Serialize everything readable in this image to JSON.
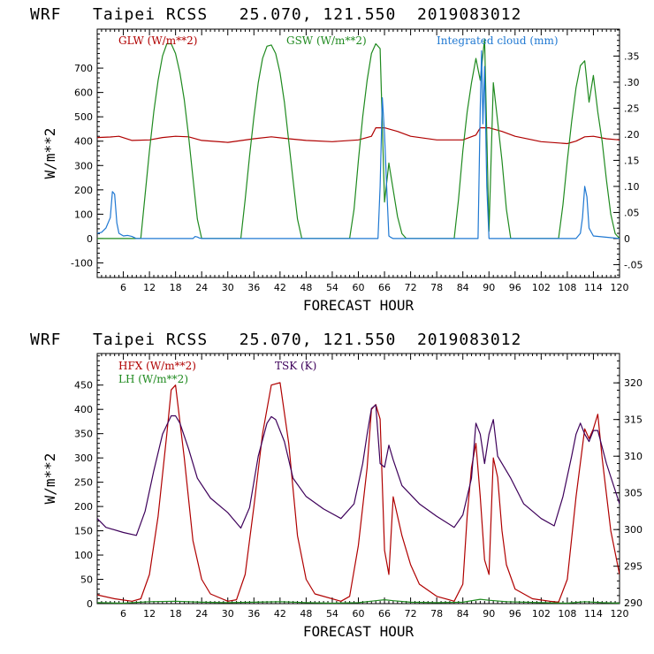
{
  "colors": {
    "red": "#b00000",
    "green": "#1f8a1f",
    "blue": "#1f78d2",
    "purple": "#3d005a",
    "axis": "#000000"
  },
  "chart_data": [
    {
      "type": "line",
      "title": "WRF   Taipei RCSS   25.070, 121.550  2019083012",
      "xlabel": "FORECAST HOUR",
      "ylabel": "W/m**2",
      "xlim": [
        0,
        120
      ],
      "ylim": [
        -160,
        860
      ],
      "y2lim": [
        -0.0747,
        0.4016
      ],
      "xticks": [
        "6",
        "12",
        "18",
        "24",
        "30",
        "36",
        "42",
        "48",
        "54",
        "60",
        "66",
        "72",
        "78",
        "84",
        "90",
        "96",
        "102",
        "108",
        "114",
        "120"
      ],
      "yticks": [
        "-100",
        "0",
        "100",
        "200",
        "300",
        "400",
        "500",
        "600",
        "700"
      ],
      "y2ticks": [
        "-.05",
        "0",
        ".05",
        ".10",
        ".15",
        ".20",
        ".25",
        ".30",
        ".35"
      ],
      "series": [
        {
          "name": "GLW (W/m**2)",
          "color": "red",
          "axis": "left",
          "x": [
            0,
            3,
            5,
            8,
            12,
            15,
            18,
            21,
            24,
            30,
            36,
            40,
            44,
            48,
            54,
            60,
            63,
            64,
            66,
            69,
            72,
            78,
            84,
            87,
            88,
            90,
            93,
            96,
            102,
            108,
            110,
            112,
            114,
            117,
            120
          ],
          "y": [
            415,
            417,
            420,
            403,
            405,
            415,
            420,
            418,
            403,
            395,
            410,
            418,
            410,
            403,
            398,
            405,
            420,
            455,
            455,
            440,
            420,
            405,
            405,
            425,
            455,
            455,
            440,
            420,
            398,
            390,
            400,
            418,
            420,
            410,
            405
          ]
        },
        {
          "name": "GSW (W/m**2)",
          "color": "green",
          "axis": "left",
          "x": [
            0,
            10,
            11,
            12,
            13,
            14,
            15,
            16,
            17,
            18,
            19,
            20,
            21,
            22,
            23,
            24,
            33,
            34,
            35,
            36,
            37,
            38,
            39,
            40,
            41,
            42,
            43,
            44,
            45,
            46,
            47,
            58,
            59,
            60,
            61,
            62,
            63,
            64,
            65,
            66,
            67,
            68,
            69,
            70,
            71,
            82,
            83,
            84,
            85,
            86,
            87,
            88,
            89,
            90,
            91,
            92,
            93,
            94,
            95,
            106,
            107,
            108,
            109,
            110,
            111,
            112,
            113,
            114,
            115,
            116,
            117,
            118,
            119,
            120
          ],
          "y": [
            0,
            0,
            180,
            360,
            520,
            650,
            750,
            800,
            800,
            760,
            680,
            570,
            420,
            250,
            80,
            0,
            0,
            160,
            340,
            500,
            640,
            740,
            790,
            795,
            760,
            680,
            560,
            400,
            240,
            80,
            0,
            0,
            120,
            320,
            500,
            650,
            760,
            800,
            780,
            150,
            310,
            200,
            90,
            20,
            0,
            0,
            160,
            360,
            520,
            640,
            740,
            650,
            820,
            30,
            640,
            480,
            320,
            120,
            0,
            0,
            140,
            320,
            480,
            620,
            710,
            730,
            560,
            670,
            520,
            400,
            240,
            100,
            20,
            0
          ]
        },
        {
          "name": "Integrated cloud (mm)",
          "color": "blue",
          "axis": "right",
          "x": [
            0,
            1,
            2,
            3,
            3.5,
            4,
            4.5,
            5,
            6,
            7,
            8,
            9,
            10,
            22,
            22.5,
            23,
            23.5,
            24,
            64.5,
            65,
            65.5,
            66,
            66.5,
            67,
            67.5,
            68,
            87.5,
            88,
            88.3,
            88.6,
            89,
            89.5,
            90,
            110,
            111,
            111.5,
            112,
            112.5,
            113,
            114,
            120
          ],
          "y": [
            0.01,
            0.012,
            0.02,
            0.04,
            0.09,
            0.085,
            0.03,
            0.01,
            0.005,
            0.006,
            0.004,
            0,
            0,
            0,
            0.004,
            0.003,
            0.001,
            0,
            0,
            0.1,
            0.27,
            0.2,
            0.1,
            0.005,
            0.002,
            0,
            0,
            0.25,
            0.36,
            0.22,
            0.33,
            0.1,
            0,
            0,
            0.01,
            0.04,
            0.1,
            0.08,
            0.02,
            0.005,
            0
          ]
        }
      ]
    },
    {
      "type": "line",
      "title": "WRF   Taipei RCSS   25.070, 121.550  2019083012",
      "xlabel": "FORECAST HOUR",
      "ylabel": "W/m**2",
      "xlim": [
        0,
        120
      ],
      "ylim": [
        0,
        515
      ],
      "y2lim": [
        289.9,
        324.0
      ],
      "xticks": [
        "6",
        "12",
        "18",
        "24",
        "30",
        "36",
        "42",
        "48",
        "54",
        "60",
        "66",
        "72",
        "78",
        "84",
        "90",
        "96",
        "102",
        "108",
        "114",
        "120"
      ],
      "yticks": [
        "0",
        "50",
        "100",
        "150",
        "200",
        "250",
        "300",
        "350",
        "400",
        "450"
      ],
      "y2ticks": [
        "290",
        "295",
        "300",
        "305",
        "310",
        "315",
        "320"
      ],
      "series": [
        {
          "name": "HFX (W/m**2)",
          "color": "red",
          "axis": "left",
          "x": [
            0,
            4,
            8,
            10,
            12,
            14,
            16,
            17,
            18,
            20,
            22,
            24,
            26,
            30,
            32,
            34,
            36,
            38,
            40,
            42,
            44,
            46,
            48,
            50,
            56,
            58,
            60,
            62,
            63,
            64,
            65,
            66,
            67,
            68,
            70,
            72,
            74,
            78,
            82,
            84,
            85,
            86,
            87,
            88,
            89,
            90,
            91,
            92,
            93,
            94,
            96,
            100,
            104,
            106,
            108,
            110,
            112,
            113,
            114,
            115,
            116,
            118,
            120
          ],
          "y": [
            18,
            10,
            5,
            10,
            60,
            180,
            350,
            440,
            450,
            300,
            130,
            50,
            20,
            5,
            8,
            60,
            200,
            350,
            450,
            455,
            330,
            140,
            50,
            20,
            5,
            15,
            120,
            280,
            400,
            410,
            380,
            110,
            60,
            220,
            140,
            80,
            40,
            15,
            5,
            40,
            180,
            280,
            330,
            220,
            90,
            60,
            300,
            260,
            150,
            80,
            30,
            10,
            5,
            3,
            50,
            220,
            360,
            340,
            360,
            390,
            300,
            150,
            60
          ]
        },
        {
          "name": "LH (W/m**2)",
          "color": "green",
          "axis": "left",
          "x": [
            0,
            6,
            12,
            18,
            24,
            30,
            36,
            42,
            48,
            54,
            60,
            64,
            66,
            68,
            72,
            78,
            84,
            88,
            90,
            94,
            102,
            108,
            112,
            116,
            120
          ],
          "y": [
            2,
            1,
            4,
            5,
            3,
            2,
            3,
            4,
            2,
            1,
            2,
            6,
            8,
            6,
            3,
            2,
            3,
            9,
            7,
            4,
            2,
            1,
            4,
            2,
            1
          ]
        },
        {
          "name": "TSK (K)",
          "color": "purple",
          "axis": "right",
          "x": [
            0,
            2,
            6,
            9,
            11,
            13,
            15,
            17,
            18,
            19,
            21,
            23,
            26,
            30,
            33,
            35,
            37,
            39,
            40,
            41,
            43,
            45,
            48,
            52,
            56,
            59,
            61,
            62,
            63,
            64,
            65,
            66,
            67,
            68,
            70,
            74,
            78,
            82,
            84,
            86,
            87,
            88,
            89,
            90,
            91,
            92,
            95,
            98,
            102,
            105,
            107,
            109,
            110,
            111,
            112,
            113,
            114,
            115,
            117,
            120
          ],
          "y": [
            301.5,
            300.3,
            299.6,
            299.2,
            302.5,
            308,
            313,
            315.5,
            315.5,
            314.5,
            311,
            307,
            304.3,
            302.3,
            300.2,
            303,
            310,
            314.5,
            315.4,
            315,
            312,
            307,
            304.5,
            302.8,
            301.5,
            303.5,
            309,
            313,
            316.5,
            317,
            309,
            308.5,
            311.5,
            309.5,
            306,
            303.5,
            301.8,
            300.3,
            302,
            307,
            314.5,
            313,
            309,
            313,
            315,
            310,
            307,
            303.5,
            301.5,
            300.5,
            304.5,
            310,
            313,
            314.5,
            313,
            312,
            313.5,
            313.5,
            309,
            303.5
          ]
        }
      ]
    }
  ]
}
